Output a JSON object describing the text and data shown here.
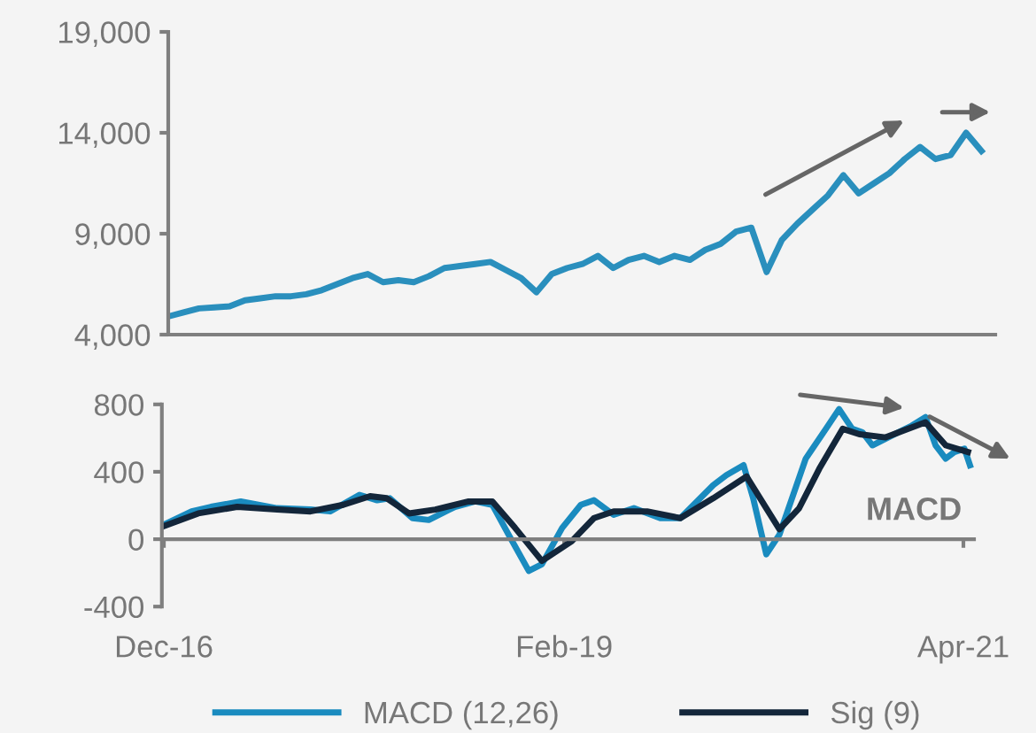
{
  "chart_data": [
    {
      "type": "line",
      "categories": [
        null,
        null,
        null,
        null,
        null,
        null,
        null,
        null,
        null,
        null,
        null,
        null,
        null,
        null,
        null,
        null,
        null,
        null,
        null,
        null,
        null,
        null,
        null,
        null,
        null,
        null,
        null,
        null,
        null,
        null,
        null,
        null,
        null,
        null,
        null,
        null,
        null,
        null,
        null,
        null,
        null,
        null,
        null,
        null,
        null,
        null,
        null,
        null,
        null,
        null,
        null,
        null,
        null,
        null
      ],
      "ylim": [
        4000,
        19000
      ],
      "yticks": [
        {
          "value": 4000,
          "label": "4,000"
        },
        {
          "value": 9000,
          "label": "9,000"
        },
        {
          "value": 14000,
          "label": "14,000"
        },
        {
          "value": 19000,
          "label": "19,000"
        }
      ],
      "tick_labels": "y",
      "series": [
        {
          "color": "#2a8fbd",
          "values": [
            4900,
            5100,
            5300,
            5350,
            5400,
            5700,
            5800,
            5900,
            5900,
            6000,
            6200,
            6500,
            6800,
            7000,
            6600,
            6700,
            6600,
            6900,
            7300,
            7400,
            7500,
            7600,
            7200,
            6800,
            6100,
            7000,
            7300,
            7500,
            7900,
            7300,
            7700,
            7900,
            7600,
            7900,
            7700,
            8200,
            8500,
            9100,
            9300,
            7100,
            8700,
            9500,
            10200,
            10900,
            11900,
            11000,
            11500,
            12000,
            12700,
            13300,
            12700,
            12900,
            14000,
            13100
          ]
        }
      ]
    },
    {
      "type": "line",
      "xlim": [
        "2016-11-27",
        "2021-04-22"
      ],
      "ylim": [
        -400,
        800
      ],
      "yticks": [
        -400,
        0,
        400,
        800
      ],
      "xticks": [
        {
          "value": "2016-12-01",
          "label": "Dec-16"
        },
        {
          "value": "2019-02-01",
          "label": "Feb-19"
        },
        {
          "value": "2021-04-01",
          "label": "Apr-21"
        }
      ],
      "annotations": [
        "MACD"
      ],
      "legend": "bottom",
      "series": [
        {
          "name": "MACD (12,26)",
          "color": "#1a8bbf",
          "x": [
            "2016-12-01",
            "2017-01-25",
            "2017-03-04",
            "2017-05-02",
            "2017-07-13",
            "2017-09-17",
            "2017-10-26",
            "2017-12-23",
            "2018-01-27",
            "2018-02-21",
            "2018-04-07",
            "2018-05-09",
            "2018-06-30",
            "2018-08-09",
            "2018-09-12",
            "2018-10-14",
            "2018-11-23",
            "2018-12-19",
            "2019-01-28",
            "2019-03-06",
            "2019-04-01",
            "2019-05-10",
            "2019-06-19",
            "2019-08-10",
            "2019-09-19",
            "2019-11-23",
            "2019-12-19",
            "2020-01-22",
            "2020-02-10",
            "2020-03-07",
            "2020-04-02",
            "2020-05-24",
            "2020-07-03",
            "2020-07-29",
            "2020-08-24",
            "2020-09-13",
            "2020-10-03",
            "2020-10-29",
            "2020-12-20",
            "2021-01-16",
            "2021-02-05",
            "2021-02-25",
            "2021-03-14",
            "2021-04-03",
            "2021-04-14"
          ],
          "values": [
            86,
            165,
            192,
            224,
            184,
            176,
            165,
            263,
            231,
            243,
            125,
            114,
            192,
            224,
            204,
            27,
            -188,
            -149,
            67,
            204,
            231,
            145,
            184,
            125,
            125,
            321,
            380,
            439,
            243,
            -90,
            27,
            478,
            655,
            772,
            655,
            635,
            557,
            596,
            674,
            725,
            557,
            478,
            517,
            537,
            439
          ]
        },
        {
          "name": "Sig (9)",
          "color": "#13263a",
          "x": [
            "2016-12-01",
            "2017-02-07",
            "2017-04-25",
            "2017-07-13",
            "2017-09-17",
            "2017-11-21",
            "2018-01-13",
            "2018-02-15",
            "2018-03-31",
            "2018-05-22",
            "2018-07-27",
            "2018-09-12",
            "2018-10-27",
            "2018-12-19",
            "2019-02-16",
            "2019-04-01",
            "2019-05-10",
            "2019-07-15",
            "2019-09-19",
            "2019-11-23",
            "2020-01-28",
            "2020-03-07",
            "2020-04-02",
            "2020-05-11",
            "2020-06-20",
            "2020-08-05",
            "2020-09-07",
            "2020-10-29",
            "2021-01-16",
            "2021-02-25",
            "2021-04-10"
          ],
          "values": [
            78,
            153,
            192,
            176,
            165,
            204,
            255,
            243,
            153,
            176,
            224,
            224,
            67,
            -129,
            -12,
            125,
            165,
            165,
            125,
            243,
            372,
            184,
            59,
            184,
            419,
            655,
            623,
            604,
            694,
            557,
            517
          ]
        }
      ]
    }
  ]
}
